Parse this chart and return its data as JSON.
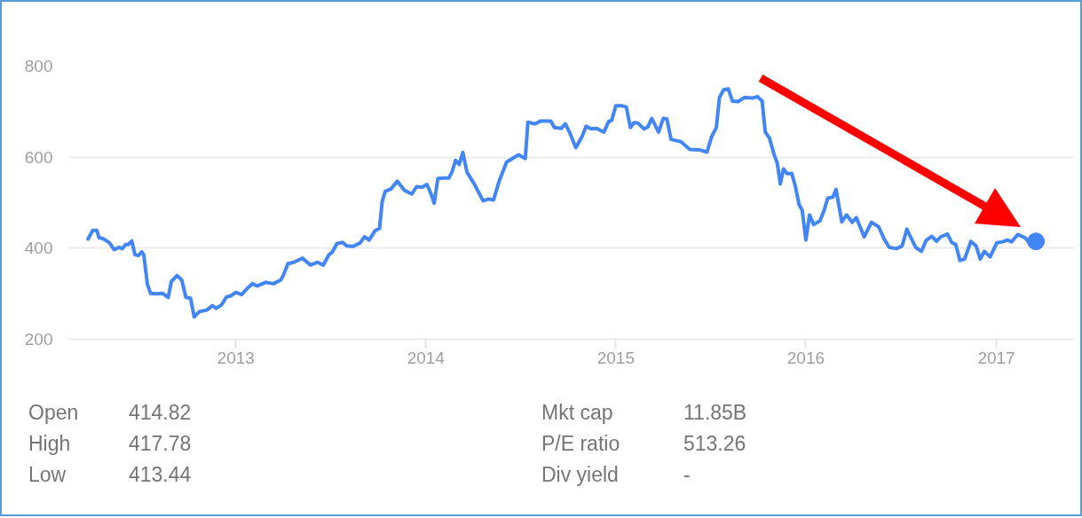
{
  "chart_data": {
    "type": "line",
    "x": [
      "2012-03-23",
      "2012-04-01",
      "2012-04-09",
      "2012-04-13",
      "2012-04-21",
      "2012-05-03",
      "2012-05-12",
      "2012-05-22",
      "2012-05-28",
      "2012-06-03",
      "2012-06-08",
      "2012-06-15",
      "2012-06-21",
      "2012-06-28",
      "2012-07-04",
      "2012-07-08",
      "2012-07-15",
      "2012-07-21",
      "2012-08-01",
      "2012-08-13",
      "2012-08-24",
      "2012-08-30",
      "2012-09-10",
      "2012-09-19",
      "2012-09-27",
      "2012-10-06",
      "2012-10-13",
      "2012-10-23",
      "2012-11-06",
      "2012-11-17",
      "2012-11-24",
      "2012-12-04",
      "2012-12-14",
      "2012-12-22",
      "2013-01-01",
      "2013-01-12",
      "2013-01-23",
      "2013-02-02",
      "2013-02-11",
      "2013-02-27",
      "2013-03-14",
      "2013-03-28",
      "2013-04-02",
      "2013-04-11",
      "2013-04-22",
      "2013-05-09",
      "2013-05-24",
      "2013-06-07",
      "2013-06-18",
      "2013-06-29",
      "2013-07-05",
      "2013-07-14",
      "2013-07-25",
      "2013-08-02",
      "2013-08-14",
      "2013-08-28",
      "2013-09-05",
      "2013-09-14",
      "2013-09-25",
      "2013-10-04",
      "2013-10-09",
      "2013-10-15",
      "2013-10-26",
      "2013-11-07",
      "2013-11-21",
      "2013-12-05",
      "2013-12-14",
      "2013-12-25",
      "2014-01-03",
      "2014-01-11",
      "2014-01-17",
      "2014-01-24",
      "2014-02-03",
      "2014-02-14",
      "2014-02-20",
      "2014-02-27",
      "2014-03-06",
      "2014-03-13",
      "2014-03-21",
      "2014-04-04",
      "2014-04-21",
      "2014-05-02",
      "2014-05-11",
      "2014-05-22",
      "2014-06-05",
      "2014-06-19",
      "2014-06-28",
      "2014-07-11",
      "2014-07-16",
      "2014-07-29",
      "2014-08-09",
      "2014-08-29",
      "2014-09-05",
      "2014-09-18",
      "2014-09-26",
      "2014-10-05",
      "2014-10-16",
      "2014-10-28",
      "2014-11-05",
      "2014-11-14",
      "2014-11-25",
      "2014-12-09",
      "2014-12-18",
      "2014-12-24",
      "2015-01-01",
      "2015-01-12",
      "2015-01-21",
      "2015-01-29",
      "2015-02-05",
      "2015-02-12",
      "2015-02-24",
      "2015-03-03",
      "2015-03-11",
      "2015-03-24",
      "2015-04-02",
      "2015-04-09",
      "2015-04-17",
      "2015-05-06",
      "2015-05-23",
      "2015-06-11",
      "2015-06-25",
      "2015-07-04",
      "2015-07-13",
      "2015-07-19",
      "2015-07-27",
      "2015-08-05",
      "2015-08-13",
      "2015-08-24",
      "2015-09-05",
      "2015-09-22",
      "2015-09-30",
      "2015-10-09",
      "2015-10-15",
      "2015-10-23",
      "2015-11-01",
      "2015-11-07",
      "2015-11-13",
      "2015-11-19",
      "2015-11-26",
      "2015-12-05",
      "2015-12-12",
      "2015-12-19",
      "2015-12-25",
      "2016-01-01",
      "2016-01-08",
      "2016-01-16",
      "2016-01-28",
      "2016-02-05",
      "2016-02-12",
      "2016-02-22",
      "2016-02-28",
      "2016-03-10",
      "2016-03-19",
      "2016-03-30",
      "2016-04-07",
      "2016-04-22",
      "2016-05-06",
      "2016-05-20",
      "2016-05-30",
      "2016-06-09",
      "2016-06-23",
      "2016-07-04",
      "2016-07-13",
      "2016-07-20",
      "2016-07-30",
      "2016-08-10",
      "2016-08-19",
      "2016-08-30",
      "2016-09-08",
      "2016-09-16",
      "2016-09-29",
      "2016-10-07",
      "2016-10-15",
      "2016-10-23",
      "2016-11-01",
      "2016-11-13",
      "2016-11-23",
      "2016-12-01",
      "2016-12-09",
      "2016-12-20",
      "2017-01-02",
      "2017-01-13",
      "2017-01-22",
      "2017-01-30",
      "2017-02-11",
      "2017-02-25",
      "2017-03-08",
      "2017-03-18"
    ],
    "series": [
      {
        "color": "#4285f4",
        "values": [
          420,
          439,
          439,
          423,
          421,
          412,
          397,
          402,
          399,
          408,
          408,
          416,
          386,
          384,
          392,
          386,
          321,
          301,
          300,
          301,
          292,
          327,
          340,
          330,
          292,
          290,
          249,
          261,
          264,
          274,
          268,
          275,
          293,
          295,
          303,
          298,
          312,
          322,
          317,
          325,
          322,
          330,
          340,
          366,
          369,
          378,
          363,
          369,
          363,
          386,
          391,
          410,
          413,
          405,
          404,
          412,
          425,
          418,
          438,
          444,
          502,
          525,
          530,
          547,
          527,
          519,
          535,
          534,
          540,
          519,
          499,
          553,
          554,
          554,
          567,
          593,
          584,
          610,
          567,
          541,
          504,
          508,
          506,
          548,
          589,
          599,
          605,
          597,
          677,
          673,
          679,
          679,
          665,
          663,
          673,
          652,
          621,
          645,
          668,
          662,
          663,
          655,
          678,
          681,
          713,
          713,
          710,
          665,
          676,
          675,
          662,
          666,
          685,
          655,
          685,
          684,
          639,
          634,
          617,
          616,
          611,
          645,
          665,
          731,
          748,
          750,
          723,
          722,
          731,
          730,
          733,
          723,
          655,
          642,
          606,
          587,
          541,
          574,
          564,
          564,
          535,
          496,
          483,
          418,
          473,
          452,
          460,
          483,
          510,
          512,
          529,
          458,
          473,
          457,
          467,
          425,
          457,
          447,
          421,
          402,
          399,
          405,
          442,
          425,
          402,
          393,
          417,
          426,
          415,
          425,
          431,
          413,
          408,
          373,
          376,
          415,
          405,
          376,
          393,
          381,
          412,
          414,
          418,
          414,
          430,
          423,
          408,
          415
        ]
      },
      {
        "type": "scatter",
        "marker": "circle",
        "color": "#4285f4",
        "x": [
          "2017-03-18"
        ],
        "values": [
          415
        ]
      }
    ],
    "xlim": [
      "2012-02-15",
      "2017-05-31"
    ],
    "xticks": [
      {
        "value": "2013-01-01",
        "label": "2013"
      },
      {
        "value": "2014-01-01",
        "label": "2014"
      },
      {
        "value": "2015-01-01",
        "label": "2015"
      },
      {
        "value": "2016-01-01",
        "label": "2016"
      },
      {
        "value": "2017-01-01",
        "label": "2017"
      }
    ],
    "ylim": [
      200,
      800
    ],
    "yticks": [
      200,
      400,
      600,
      800
    ],
    "grid": "y",
    "annotations": [
      "Open",
      "414.82",
      "High",
      "417.78",
      "Low",
      "413.44",
      "Mkt cap",
      "11.85B",
      "P/E ratio",
      "513.26",
      "Div yield",
      "-"
    ]
  }
}
